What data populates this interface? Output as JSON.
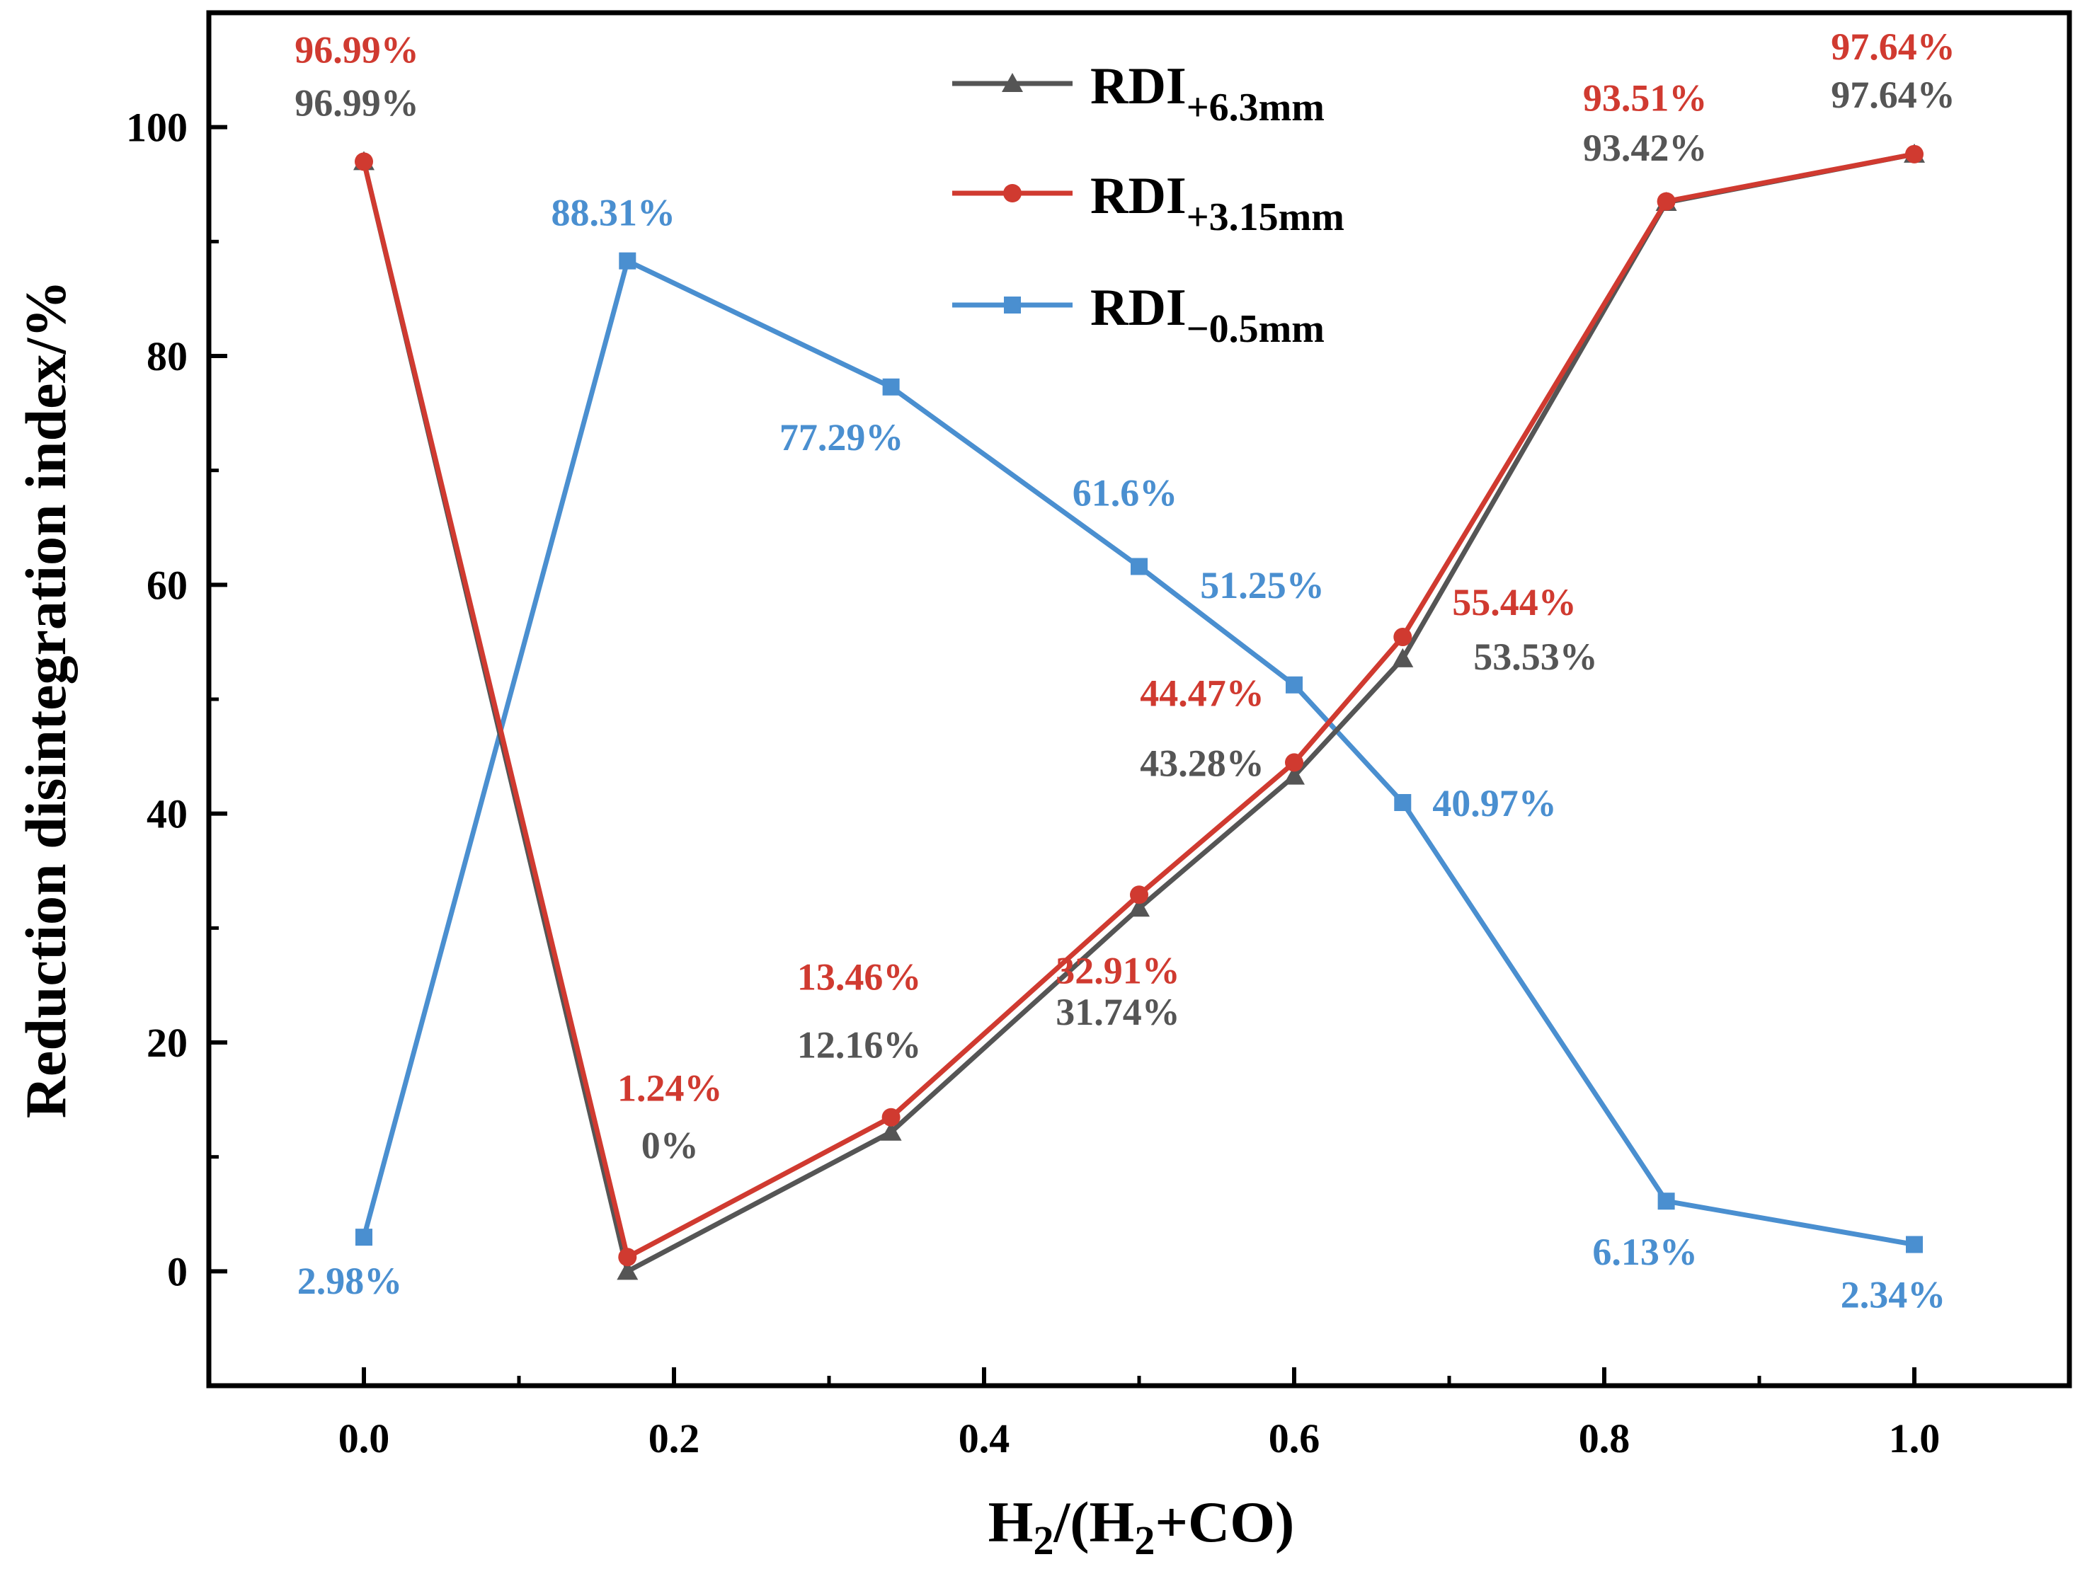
{
  "chart_data": {
    "type": "line",
    "xlabel": {
      "base": "H",
      "sub1": "2",
      "mid": "/(H",
      "sub2": "2",
      "end": "+CO)"
    },
    "ylabel": "Reduction disintegration index/%",
    "xlim": [
      -0.1,
      1.1
    ],
    "ylim": [
      -10,
      110
    ],
    "xticks": [
      0.0,
      0.2,
      0.4,
      0.6,
      0.8,
      1.0
    ],
    "xtick_labels": [
      "0.0",
      "0.2",
      "0.4",
      "0.6",
      "0.8",
      "1.0"
    ],
    "yticks": [
      0,
      20,
      40,
      60,
      80,
      100
    ],
    "ytick_labels": [
      "0",
      "20",
      "40",
      "60",
      "80",
      "100"
    ],
    "x": [
      0.0,
      0.17,
      0.34,
      0.5,
      0.6,
      0.67,
      0.84,
      1.0
    ],
    "series": [
      {
        "name": "RDI+6.3mm",
        "legend_main": "RDI",
        "legend_sub": "+6.3mm",
        "color": "#555555",
        "marker": "triangle",
        "values": [
          96.99,
          0,
          12.16,
          31.74,
          43.28,
          53.53,
          93.42,
          97.64
        ],
        "labels": [
          "96.99%",
          "0%",
          "12.16%",
          "31.74%",
          "43.28%",
          "53.53%",
          "93.42%",
          "97.64%"
        ]
      },
      {
        "name": "RDI+3.15mm",
        "legend_main": "RDI",
        "legend_sub": "+3.15mm",
        "color": "#d03a30",
        "marker": "circle",
        "values": [
          96.99,
          1.24,
          13.46,
          32.91,
          44.47,
          55.44,
          93.51,
          97.64
        ],
        "labels": [
          "96.99%",
          "1.24%",
          "13.46%",
          "32.91%",
          "44.47%",
          "55.44%",
          "93.51%",
          "97.64%"
        ]
      },
      {
        "name": "RDI−0.5mm",
        "legend_main": "RDI",
        "legend_sub": "−0.5mm",
        "color": "#4a8fd0",
        "marker": "square",
        "values": [
          2.98,
          88.31,
          77.29,
          61.6,
          51.25,
          40.97,
          6.13,
          2.34
        ],
        "labels": [
          "2.98%",
          "88.31%",
          "77.29%",
          "61.6%",
          "51.25%",
          "40.97%",
          "6.13%",
          "2.34%"
        ]
      }
    ],
    "legend_position": "top-center"
  }
}
